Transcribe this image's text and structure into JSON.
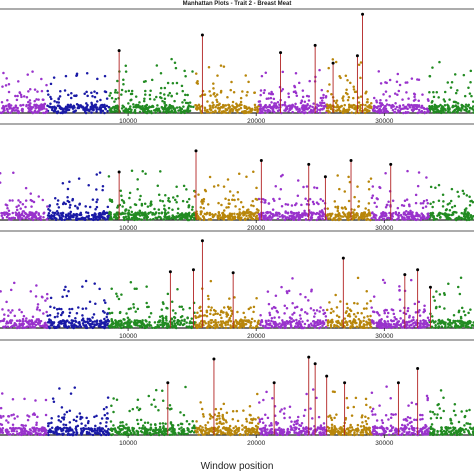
{
  "chart_data": {
    "type": "scatter",
    "title": "Manhattan Plots - Trait 2 - Breast Meat",
    "xlabel": "Window position",
    "ylabel": "",
    "xlim": [
      0,
      37000
    ],
    "x_ticks": [
      10000,
      20000,
      30000
    ],
    "x_tick_labels": [
      "10000",
      "20000",
      "30000"
    ],
    "grid": false,
    "legend": "none",
    "chromosome_bounds": [
      0,
      3700,
      8500,
      15200,
      20200,
      25500,
      29000,
      33500,
      37000
    ],
    "chromosome_colors": [
      "#9933cc",
      "#1a1aa6",
      "#228b22",
      "#b8860b",
      "#9933cc",
      "#b8860b",
      "#9933cc",
      "#228b22"
    ],
    "highlight_line_color": "#b22222",
    "highlight_point_color": "#000000",
    "panels": [
      {
        "name": "panel-1",
        "ylim": [
          0,
          100
        ],
        "highlights": [
          {
            "x": 9300,
            "y": 60
          },
          {
            "x": 15800,
            "y": 75
          },
          {
            "x": 21900,
            "y": 58
          },
          {
            "x": 24600,
            "y": 65
          },
          {
            "x": 26000,
            "y": 48
          },
          {
            "x": 27900,
            "y": 55
          },
          {
            "x": 28300,
            "y": 95
          }
        ]
      },
      {
        "name": "panel-2",
        "ylim": [
          0,
          100
        ],
        "highlights": [
          {
            "x": 9300,
            "y": 50
          },
          {
            "x": 15300,
            "y": 72
          },
          {
            "x": 20400,
            "y": 62
          },
          {
            "x": 24100,
            "y": 58
          },
          {
            "x": 25400,
            "y": 45
          },
          {
            "x": 27400,
            "y": 62
          },
          {
            "x": 30500,
            "y": 58
          }
        ]
      },
      {
        "name": "panel-3",
        "ylim": [
          0,
          100
        ],
        "highlights": [
          {
            "x": 13300,
            "y": 58
          },
          {
            "x": 15100,
            "y": 60
          },
          {
            "x": 15800,
            "y": 90
          },
          {
            "x": 18200,
            "y": 57
          },
          {
            "x": 26800,
            "y": 72
          },
          {
            "x": 31600,
            "y": 55
          },
          {
            "x": 32600,
            "y": 60
          },
          {
            "x": 33600,
            "y": 42
          }
        ]
      },
      {
        "name": "panel-4",
        "ylim": [
          0,
          100
        ],
        "highlights": [
          {
            "x": 13100,
            "y": 55
          },
          {
            "x": 16700,
            "y": 80
          },
          {
            "x": 21400,
            "y": 55
          },
          {
            "x": 24100,
            "y": 82
          },
          {
            "x": 24600,
            "y": 75
          },
          {
            "x": 25500,
            "y": 62
          },
          {
            "x": 26900,
            "y": 55
          },
          {
            "x": 31100,
            "y": 55
          },
          {
            "x": 32600,
            "y": 70
          }
        ]
      }
    ],
    "background_points_per_panel": 1400
  }
}
